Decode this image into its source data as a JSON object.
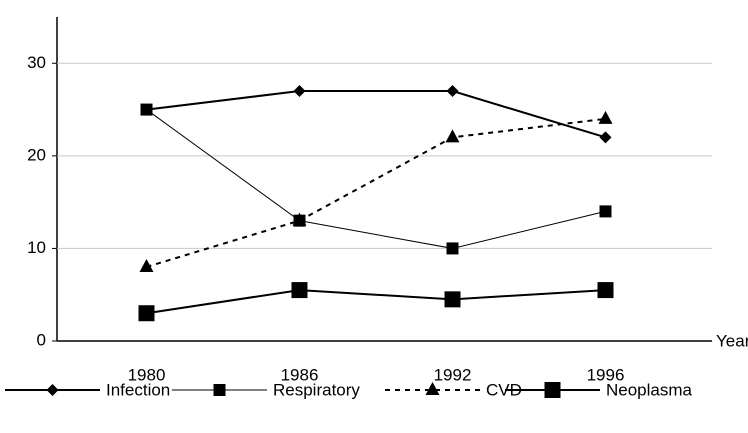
{
  "chart_data": {
    "type": "line",
    "categories": [
      "1980",
      "1986",
      "1992",
      "1996"
    ],
    "x_label": "Year",
    "ylim": [
      0,
      35
    ],
    "yticks": [
      0,
      10,
      20,
      30
    ],
    "grid": true,
    "series": [
      {
        "name": "Infection",
        "color": "#000000",
        "marker": "diamond",
        "line_width": 2,
        "dashed": false,
        "values": [
          25,
          27,
          27,
          22
        ]
      },
      {
        "name": "Respiratory",
        "color": "#000000",
        "marker": "square",
        "line_width": 1,
        "dashed": false,
        "values": [
          25,
          13,
          10,
          14
        ]
      },
      {
        "name": "CVD",
        "color": "#000000",
        "marker": "triangle",
        "line_width": 2,
        "dashed": true,
        "values": [
          8,
          13,
          22,
          24
        ]
      },
      {
        "name": "Neoplasma",
        "color": "#000000",
        "marker": "big-square",
        "line_width": 2,
        "dashed": false,
        "values": [
          3,
          5.5,
          4.5,
          5.5
        ]
      }
    ]
  }
}
